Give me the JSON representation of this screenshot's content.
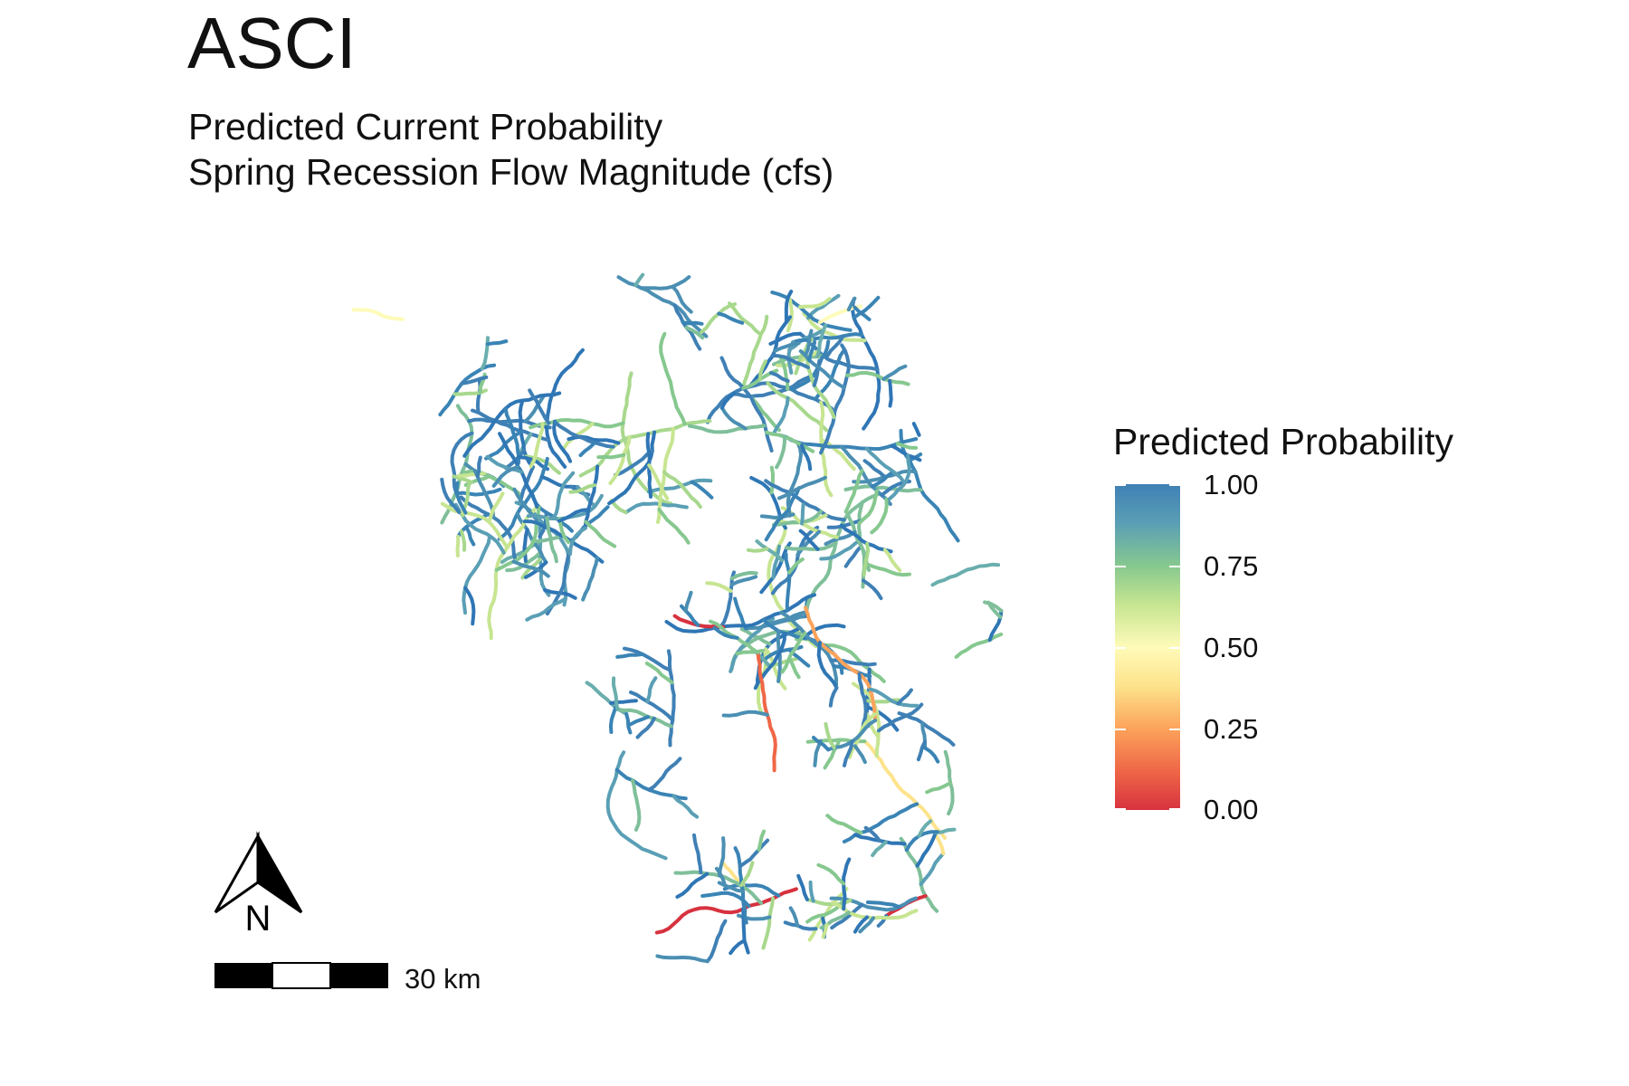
{
  "title": "ASCI",
  "subtitle_line1": "Predicted Current Probability",
  "subtitle_line2": "Spring Recession Flow Magnitude (cfs)",
  "legend": {
    "title": "Predicted Probability",
    "breaks": [
      "1.00",
      "0.75",
      "0.50",
      "0.25",
      "0.00"
    ],
    "colors": [
      "#3f80b5",
      "#86c88f",
      "#fefbb9",
      "#fca35b",
      "#d7323f"
    ]
  },
  "scale_bar": {
    "label": "30 km"
  },
  "north_arrow": {
    "label": "N",
    "icon": "north-arrow-icon"
  }
}
